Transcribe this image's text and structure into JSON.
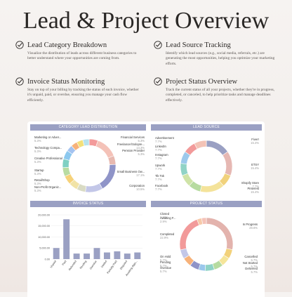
{
  "title": "Lead & Project Overview",
  "features": [
    {
      "title": "Lead Category Breakdown",
      "desc": "Visualize the distribution of leads across different business categories to better understand where your opportunities are coming from."
    },
    {
      "title": "Lead Source Tracking",
      "desc": "Identify which lead sources (e.g., social media, referrals, etc.) are generating the most opportunities, helping you optimize your marketing efforts."
    },
    {
      "title": "Invoice Status Monitoring",
      "desc": "Stay on top of your billing by tracking the status of each invoice, whether it's unpaid, paid, or overdue, ensuring you manage your cash flow efficiently."
    },
    {
      "title": "Project Status Overview",
      "desc": "Track the current status of all your projects, whether they're in progress, completed, or canceled, to help prioritize tasks and manage deadlines effectively."
    }
  ],
  "panels": {
    "category": "CATEGORY LEAD DISTRIBUTION",
    "source": "LEAD SOURCE",
    "invoice": "INVOICE STATUS",
    "project": "PROJECT STATUS"
  },
  "colors": {
    "header": "#9aa0c3",
    "check": "#2d2a28"
  },
  "chart_data": [
    {
      "type": "pie",
      "title": "CATEGORY LEAD DISTRIBUTION",
      "slices": [
        {
          "name": "Financial Services",
          "value": 5.3,
          "pct": "5.3%",
          "color": "#f39a9a"
        },
        {
          "name": "Freelancer/Solopre...",
          "value": 13.3,
          "pct": "13.3%",
          "color": "#f4c2b8"
        },
        {
          "name": "Pension Provider",
          "value": 5.3,
          "pct": "5.3%",
          "color": "#e7b9b0"
        },
        {
          "name": "Small Business Ow...",
          "value": 17.1,
          "pct": "17.1%",
          "color": "#8f94c8"
        },
        {
          "name": "Corporation",
          "value": 10.5,
          "pct": "10.5%",
          "color": "#c3c7e8"
        },
        {
          "name": "Non-Profit Organiz...",
          "value": 5.3,
          "pct": "5.3%",
          "color": "#d9dbc4"
        },
        {
          "name": "Retail/Shop",
          "value": 5.3,
          "pct": "5.3%",
          "color": "#f1e3a6"
        },
        {
          "name": "Startup",
          "value": 5.3,
          "pct": "5.3%",
          "color": "#f6d27a"
        },
        {
          "name": "Creative Professional",
          "value": 5.3,
          "pct": "5.3%",
          "color": "#b9dca2"
        },
        {
          "name": "Technology Compa...",
          "value": 5.3,
          "pct": "5.3%",
          "color": "#7fd0c3"
        },
        {
          "name": "Marketing or Adver...",
          "value": 5.3,
          "pct": "5.3%",
          "color": "#8cc8ee"
        },
        {
          "name": "",
          "value": 3.8,
          "pct": "",
          "color": "#a4c3f0"
        },
        {
          "name": "",
          "value": 3.8,
          "pct": "",
          "color": "#f7b27a"
        },
        {
          "name": "",
          "value": 3.8,
          "pct": "",
          "color": "#f3e07a"
        },
        {
          "name": "",
          "value": 3.8,
          "pct": "",
          "color": "#b8e3ee"
        }
      ]
    },
    {
      "type": "pie",
      "title": "LEAD SOURCE",
      "slices": [
        {
          "name": "Fiverr",
          "value": 15.4,
          "pct": "15.4%",
          "color": "#9aa0c3"
        },
        {
          "name": "ETSY",
          "value": 15.4,
          "pct": "15.4%",
          "color": "#e6b8b3"
        },
        {
          "name": "Shopify Store",
          "value": 7.7,
          "pct": "7.7%",
          "color": "#f1d27c"
        },
        {
          "name": "Pinterest",
          "value": 15.4,
          "pct": "15.4%",
          "color": "#f4e39a"
        },
        {
          "name": "Facebook",
          "value": 7.7,
          "pct": "7.7%",
          "color": "#b7dba0"
        },
        {
          "name": "Tik Tok",
          "value": 7.7,
          "pct": "7.7%",
          "color": "#cfe3a7"
        },
        {
          "name": "Upwork",
          "value": 7.7,
          "pct": "7.7%",
          "color": "#90d3c6"
        },
        {
          "name": "Instagram",
          "value": 7.7,
          "pct": "7.7%",
          "color": "#9cc9ec"
        },
        {
          "name": "LinkedIn",
          "value": 7.7,
          "pct": "7.7%",
          "color": "#f29a9a"
        },
        {
          "name": "Advertisement",
          "value": 7.7,
          "pct": "7.7%",
          "color": "#f3c3b6"
        }
      ]
    },
    {
      "type": "bar",
      "title": "INVOICE STATUS",
      "categories": [
        "Unpaid",
        "Paid",
        "Refunded",
        "Pending",
        "Overdue",
        "Voided",
        "Partially Paid",
        "Disputed",
        "Awaiting Appr..."
      ],
      "values": [
        5000,
        18000,
        2500,
        2500,
        5000,
        3000,
        3500,
        2500,
        3000
      ],
      "yticks": [
        "20,000.00",
        "15,000.00",
        "10,000.00",
        "5,000.00",
        "0.00"
      ],
      "ylim": [
        0,
        20000
      ],
      "color": "#9aa0c3"
    },
    {
      "type": "pie",
      "title": "PROJECT STATUS",
      "slices": [
        {
          "name": "In Progress",
          "value": 28.6,
          "pct": "28.6%",
          "color": "#e3b3ad"
        },
        {
          "name": "Cancelled",
          "value": 5.7,
          "pct": "5.7%",
          "color": "#f2d17a"
        },
        {
          "name": "Not Started",
          "value": 5.7,
          "pct": "5.7%",
          "color": "#f5e59a"
        },
        {
          "name": "Delivered",
          "value": 5.7,
          "pct": "5.7%",
          "color": "#b6dba0"
        },
        {
          "name": "",
          "value": 5.7,
          "pct": "",
          "color": "#90d3c6"
        },
        {
          "name": "",
          "value": 4.1,
          "pct": "",
          "color": "#9ac7ec"
        },
        {
          "name": "Overdue",
          "value": 5.7,
          "pct": "5.7%",
          "color": "#8f94c8"
        },
        {
          "name": "Pending",
          "value": 5.7,
          "pct": "5.7%",
          "color": "#f7b27a"
        },
        {
          "name": "On Hold",
          "value": 5.7,
          "pct": "5.7%",
          "color": "#c3c7e8"
        },
        {
          "name": "Completed",
          "value": 22.9,
          "pct": "22.9%",
          "color": "#f29a9a"
        },
        {
          "name": "Awaiting F...",
          "value": 2.9,
          "pct": "2.9%",
          "color": "#f6c9a8"
        },
        {
          "name": "Closed",
          "value": 2.9,
          "pct": "2.9%",
          "color": "#f4c2b8"
        }
      ]
    }
  ]
}
